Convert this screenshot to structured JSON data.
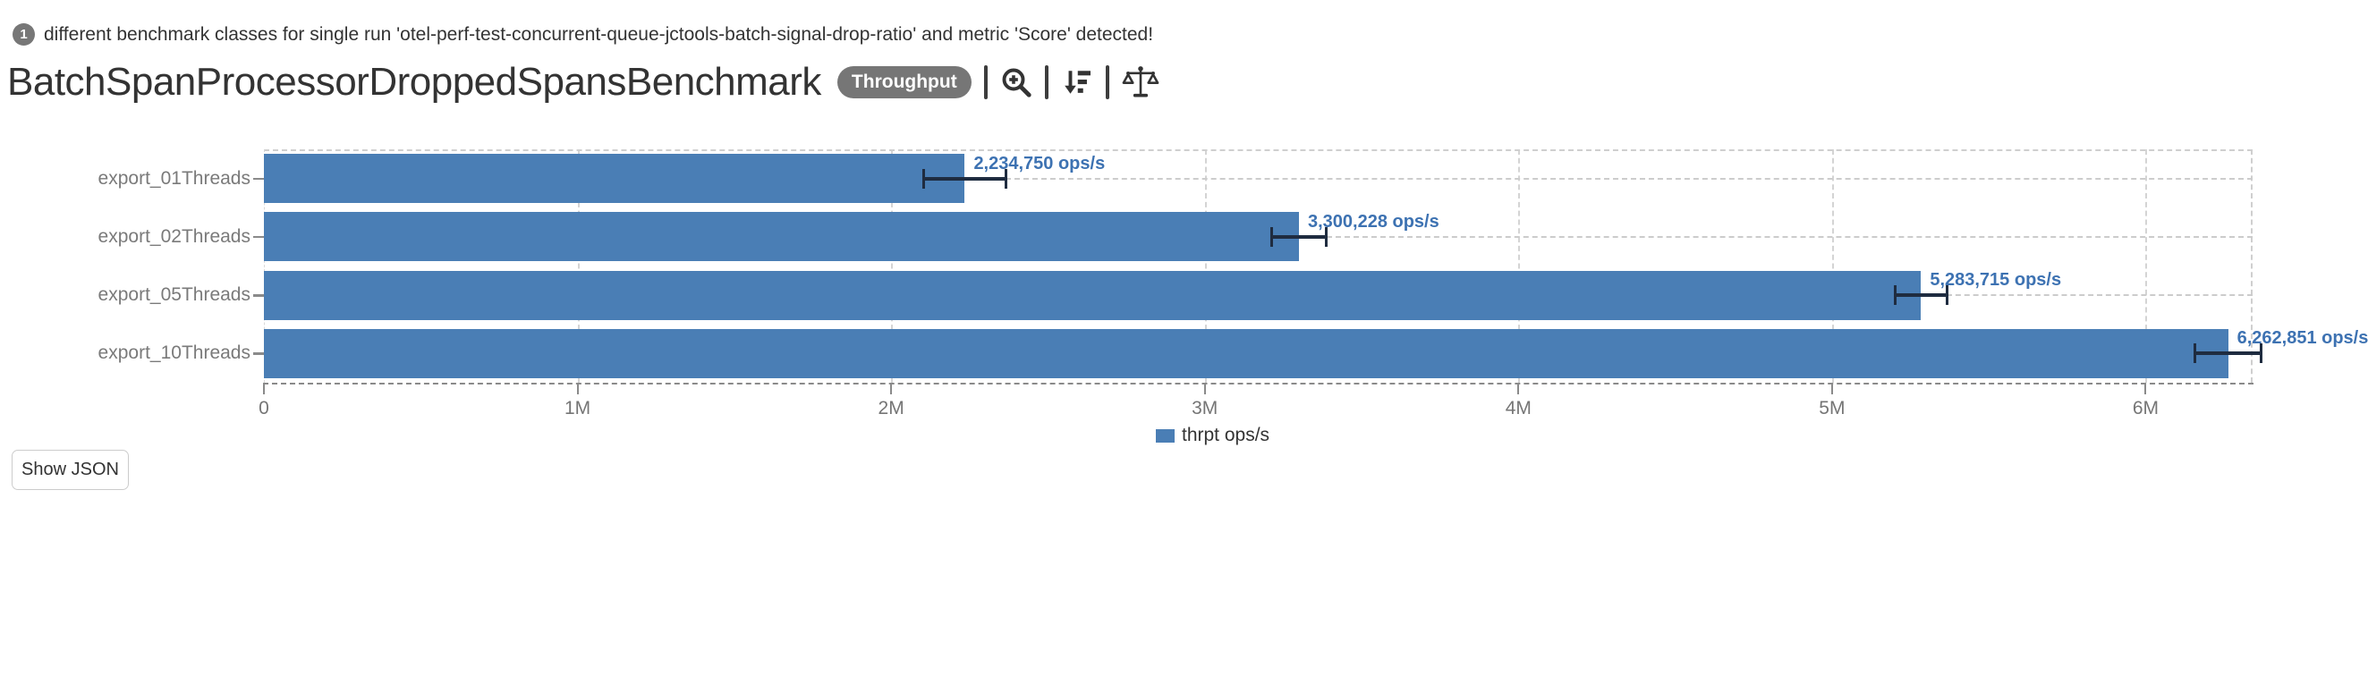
{
  "alert": {
    "count": "1",
    "text": "different benchmark classes for single run 'otel-perf-test-concurrent-queue-jctools-batch-signal-drop-ratio' and metric 'Score' detected!"
  },
  "header": {
    "title": "BatchSpanProcessorDroppedSpansBenchmark",
    "metric_badge": "Throughput",
    "icons": [
      "zoom-in-icon",
      "sort-desc-icon",
      "balance-scale-icon"
    ]
  },
  "chart_data": {
    "type": "bar",
    "orientation": "horizontal",
    "categories": [
      "export_01Threads",
      "export_02Threads",
      "export_05Threads",
      "export_10Threads"
    ],
    "series": [
      {
        "name": "thrpt ops/s",
        "values": [
          2234750,
          3300228,
          5283715,
          6262851
        ],
        "errors": [
          131000,
          88000,
          83000,
          106000
        ],
        "value_labels": [
          "2,234,750 ops/s",
          "3,300,228 ops/s",
          "5,283,715 ops/s",
          "6,262,851 ops/s"
        ]
      }
    ],
    "x_ticks": [
      "0",
      "1M",
      "2M",
      "3M",
      "4M",
      "5M",
      "6M"
    ],
    "x_tick_values": [
      0,
      1000000,
      2000000,
      3000000,
      4000000,
      5000000,
      6000000
    ],
    "xlim": [
      0,
      6341000
    ],
    "xlabel": "",
    "ylabel": "",
    "grid": "dashed-vertical",
    "legend_position": "bottom-center",
    "legend": [
      {
        "label": "thrpt ops/s",
        "color": "#4a7eb5"
      }
    ],
    "colors": {
      "bar": "#4a7eb5",
      "error_bar": "#1f2c40",
      "value_label": "#3d72b2",
      "grid": "#d4d4d4",
      "axis": "#8a8a8a"
    }
  },
  "footer": {
    "show_json_label": "Show JSON"
  }
}
